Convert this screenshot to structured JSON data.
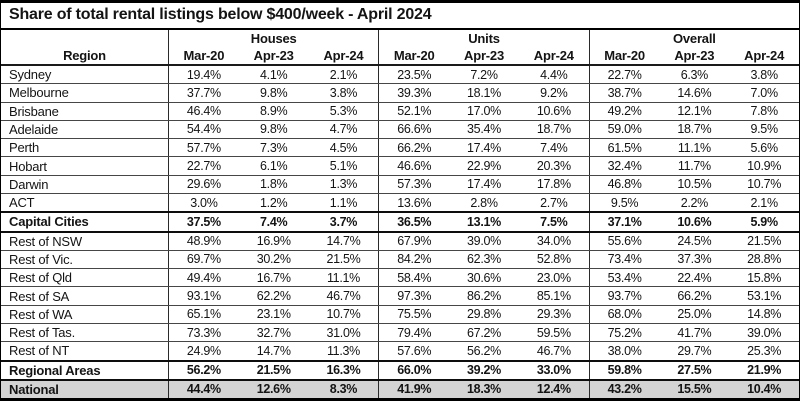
{
  "colors": {
    "text": "#141414",
    "border_heavy": "#000000",
    "border_light": "#464646",
    "shaded_row_bg": "#d4d4d4"
  },
  "chart_data": {
    "type": "table",
    "title": "Share of total rental listings below $400/week - April 2024",
    "region_column_header": "Region",
    "column_groups": [
      "Houses",
      "Units",
      "Overall"
    ],
    "sub_columns": [
      "Mar-20",
      "Apr-23",
      "Apr-24"
    ],
    "rows": [
      {
        "region": "Sydney",
        "houses": [
          "19.4%",
          "4.1%",
          "2.1%"
        ],
        "units": [
          "23.5%",
          "7.2%",
          "4.4%"
        ],
        "overall": [
          "22.7%",
          "6.3%",
          "3.8%"
        ],
        "emphasis": false,
        "shaded": false
      },
      {
        "region": "Melbourne",
        "houses": [
          "37.7%",
          "9.8%",
          "3.8%"
        ],
        "units": [
          "39.3%",
          "18.1%",
          "9.2%"
        ],
        "overall": [
          "38.7%",
          "14.6%",
          "7.0%"
        ],
        "emphasis": false,
        "shaded": false
      },
      {
        "region": "Brisbane",
        "houses": [
          "46.4%",
          "8.9%",
          "5.3%"
        ],
        "units": [
          "52.1%",
          "17.0%",
          "10.6%"
        ],
        "overall": [
          "49.2%",
          "12.1%",
          "7.8%"
        ],
        "emphasis": false,
        "shaded": false
      },
      {
        "region": "Adelaide",
        "houses": [
          "54.4%",
          "9.8%",
          "4.7%"
        ],
        "units": [
          "66.6%",
          "35.4%",
          "18.7%"
        ],
        "overall": [
          "59.0%",
          "18.7%",
          "9.5%"
        ],
        "emphasis": false,
        "shaded": false
      },
      {
        "region": "Perth",
        "houses": [
          "57.7%",
          "7.3%",
          "4.5%"
        ],
        "units": [
          "66.2%",
          "17.4%",
          "7.4%"
        ],
        "overall": [
          "61.5%",
          "11.1%",
          "5.6%"
        ],
        "emphasis": false,
        "shaded": false
      },
      {
        "region": "Hobart",
        "houses": [
          "22.7%",
          "6.1%",
          "5.1%"
        ],
        "units": [
          "46.6%",
          "22.9%",
          "20.3%"
        ],
        "overall": [
          "32.4%",
          "11.7%",
          "10.9%"
        ],
        "emphasis": false,
        "shaded": false
      },
      {
        "region": "Darwin",
        "houses": [
          "29.6%",
          "1.8%",
          "1.3%"
        ],
        "units": [
          "57.3%",
          "17.4%",
          "17.8%"
        ],
        "overall": [
          "46.8%",
          "10.5%",
          "10.7%"
        ],
        "emphasis": false,
        "shaded": false
      },
      {
        "region": "ACT",
        "houses": [
          "3.0%",
          "1.2%",
          "1.1%"
        ],
        "units": [
          "13.6%",
          "2.8%",
          "2.7%"
        ],
        "overall": [
          "9.5%",
          "2.2%",
          "2.1%"
        ],
        "emphasis": false,
        "shaded": false
      },
      {
        "region": "Capital Cities",
        "houses": [
          "37.5%",
          "7.4%",
          "3.7%"
        ],
        "units": [
          "36.5%",
          "13.1%",
          "7.5%"
        ],
        "overall": [
          "37.1%",
          "10.6%",
          "5.9%"
        ],
        "emphasis": true,
        "shaded": false
      },
      {
        "region": "Rest of NSW",
        "houses": [
          "48.9%",
          "16.9%",
          "14.7%"
        ],
        "units": [
          "67.9%",
          "39.0%",
          "34.0%"
        ],
        "overall": [
          "55.6%",
          "24.5%",
          "21.5%"
        ],
        "emphasis": false,
        "shaded": false
      },
      {
        "region": "Rest of Vic.",
        "houses": [
          "69.7%",
          "30.2%",
          "21.5%"
        ],
        "units": [
          "84.2%",
          "62.3%",
          "52.8%"
        ],
        "overall": [
          "73.4%",
          "37.3%",
          "28.8%"
        ],
        "emphasis": false,
        "shaded": false
      },
      {
        "region": "Rest of Qld",
        "houses": [
          "49.4%",
          "16.7%",
          "11.1%"
        ],
        "units": [
          "58.4%",
          "30.6%",
          "23.0%"
        ],
        "overall": [
          "53.4%",
          "22.4%",
          "15.8%"
        ],
        "emphasis": false,
        "shaded": false
      },
      {
        "region": "Rest of SA",
        "houses": [
          "93.1%",
          "62.2%",
          "46.7%"
        ],
        "units": [
          "97.3%",
          "86.2%",
          "85.1%"
        ],
        "overall": [
          "93.7%",
          "66.2%",
          "53.1%"
        ],
        "emphasis": false,
        "shaded": false
      },
      {
        "region": "Rest of WA",
        "houses": [
          "65.1%",
          "23.1%",
          "10.7%"
        ],
        "units": [
          "75.5%",
          "29.8%",
          "29.3%"
        ],
        "overall": [
          "68.0%",
          "25.0%",
          "14.8%"
        ],
        "emphasis": false,
        "shaded": false
      },
      {
        "region": "Rest of Tas.",
        "houses": [
          "73.3%",
          "32.7%",
          "31.0%"
        ],
        "units": [
          "79.4%",
          "67.2%",
          "59.5%"
        ],
        "overall": [
          "75.2%",
          "41.7%",
          "39.0%"
        ],
        "emphasis": false,
        "shaded": false
      },
      {
        "region": "Rest of NT",
        "houses": [
          "24.9%",
          "14.7%",
          "11.3%"
        ],
        "units": [
          "57.6%",
          "56.2%",
          "46.7%"
        ],
        "overall": [
          "38.0%",
          "29.7%",
          "25.3%"
        ],
        "emphasis": false,
        "shaded": false
      },
      {
        "region": "Regional Areas",
        "houses": [
          "56.2%",
          "21.5%",
          "16.3%"
        ],
        "units": [
          "66.0%",
          "39.2%",
          "33.0%"
        ],
        "overall": [
          "59.8%",
          "27.5%",
          "21.9%"
        ],
        "emphasis": true,
        "shaded": false
      },
      {
        "region": "National",
        "houses": [
          "44.4%",
          "12.6%",
          "8.3%"
        ],
        "units": [
          "41.9%",
          "18.3%",
          "12.4%"
        ],
        "overall": [
          "43.2%",
          "15.5%",
          "10.4%"
        ],
        "emphasis": true,
        "shaded": true
      }
    ]
  }
}
